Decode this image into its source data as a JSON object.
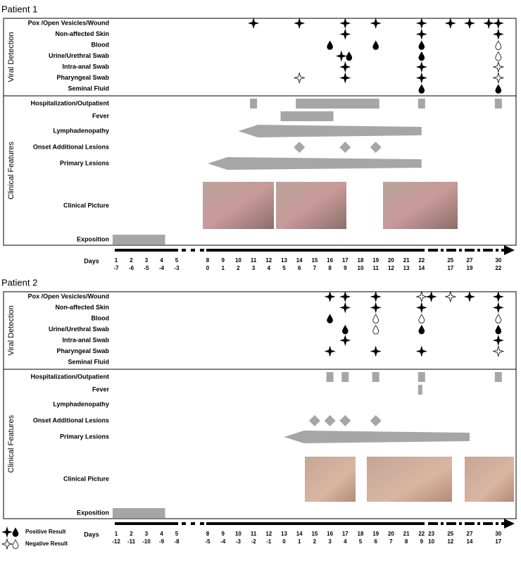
{
  "patients": [
    {
      "title": "Patient 1",
      "viral_detection": {
        "label": "Viral Detection",
        "rows": [
          {
            "label": "Pox /Open Vesicles/Wound",
            "events": [
              {
                "day": 11,
                "symbol": "star",
                "positive": true
              },
              {
                "day": 14,
                "symbol": "star",
                "positive": true
              },
              {
                "day": 17,
                "symbol": "star",
                "positive": true
              },
              {
                "day": 19,
                "symbol": "star",
                "positive": true
              },
              {
                "day": 22,
                "symbol": "star",
                "positive": true
              },
              {
                "day": 25,
                "symbol": "star",
                "positive": true
              },
              {
                "day": 27,
                "symbol": "star",
                "positive": true
              },
              {
                "day": 29,
                "symbol": "star",
                "positive": true
              },
              {
                "day": 30,
                "symbol": "star",
                "positive": true
              }
            ]
          },
          {
            "label": "Non-affected Skin",
            "events": [
              {
                "day": 17,
                "symbol": "star",
                "positive": true
              },
              {
                "day": 22,
                "symbol": "star",
                "positive": true
              },
              {
                "day": 30,
                "symbol": "star",
                "positive": true
              }
            ]
          },
          {
            "label": "Blood",
            "events": [
              {
                "day": 16,
                "symbol": "drop",
                "positive": true
              },
              {
                "day": 19,
                "symbol": "drop",
                "positive": true
              },
              {
                "day": 22,
                "symbol": "drop",
                "positive": true
              },
              {
                "day": 30,
                "symbol": "drop",
                "positive": false
              }
            ]
          },
          {
            "label": "Urine/Urethral Swab",
            "events": [
              {
                "day": 17,
                "symbol": "star",
                "positive": true
              },
              {
                "day": 17,
                "symbol": "drop",
                "positive": true
              },
              {
                "day": 22,
                "symbol": "drop",
                "positive": true
              },
              {
                "day": 30,
                "symbol": "drop",
                "positive": false
              }
            ]
          },
          {
            "label": "Intra-anal Swab",
            "events": [
              {
                "day": 17,
                "symbol": "star",
                "positive": true
              },
              {
                "day": 22,
                "symbol": "star",
                "positive": true
              },
              {
                "day": 30,
                "symbol": "star",
                "positive": false
              }
            ]
          },
          {
            "label": "Pharyngeal Swab",
            "events": [
              {
                "day": 14,
                "symbol": "star",
                "positive": false
              },
              {
                "day": 17,
                "symbol": "star",
                "positive": true
              },
              {
                "day": 22,
                "symbol": "star",
                "positive": true
              },
              {
                "day": 30,
                "symbol": "star",
                "positive": false
              }
            ]
          },
          {
            "label": "Seminal Fluid",
            "events": [
              {
                "day": 22,
                "symbol": "drop",
                "positive": true
              },
              {
                "day": 30,
                "symbol": "drop",
                "positive": true
              }
            ]
          }
        ]
      },
      "clinical_features": {
        "label": "Clinical Features",
        "rows": [
          {
            "label": "Hospitalization/Outpatient",
            "kind": "bars",
            "ranges": [
              [
                11,
                11
              ],
              [
                14,
                19
              ],
              [
                22,
                22
              ],
              [
                30,
                30
              ]
            ]
          },
          {
            "label": "Fever",
            "kind": "bars",
            "ranges": [
              [
                13,
                16
              ]
            ]
          },
          {
            "label": "Lymphadenopathy",
            "kind": "arrow",
            "range": [
              10,
              22
            ]
          },
          {
            "label": "Onset Additional Lesions",
            "kind": "diamonds",
            "days": [
              14,
              17,
              19
            ]
          },
          {
            "label": "Primary Lesions",
            "kind": "arrow",
            "range": [
              8,
              22
            ]
          },
          {
            "label": "Clinical Picture",
            "kind": "photos"
          },
          {
            "label": "Exposition",
            "kind": "bars",
            "ranges": [
              [
                1,
                4
              ]
            ]
          }
        ]
      },
      "axis": {
        "label": "Days",
        "ticks": [
          1,
          2,
          3,
          4,
          5,
          8,
          9,
          10,
          11,
          12,
          13,
          14,
          15,
          16,
          17,
          18,
          19,
          20,
          21,
          22,
          25,
          27,
          30
        ],
        "relative": [
          -7,
          -6,
          -5,
          -4,
          -3,
          0,
          1,
          2,
          3,
          4,
          5,
          6,
          7,
          8,
          9,
          10,
          11,
          12,
          13,
          14,
          17,
          19,
          22
        ]
      }
    },
    {
      "title": "Patient 2",
      "viral_detection": {
        "label": "Viral Detection",
        "rows": [
          {
            "label": "Pox /Open Vesicles/Wound",
            "events": [
              {
                "day": 16,
                "symbol": "star",
                "positive": true
              },
              {
                "day": 17,
                "symbol": "star",
                "positive": true
              },
              {
                "day": 19,
                "symbol": "star",
                "positive": true
              },
              {
                "day": 22,
                "symbol": "star",
                "positive": false
              },
              {
                "day": 23,
                "symbol": "star",
                "positive": true
              },
              {
                "day": 25,
                "symbol": "star",
                "positive": false
              },
              {
                "day": 27,
                "symbol": "star",
                "positive": true
              },
              {
                "day": 30,
                "symbol": "star",
                "positive": true
              }
            ]
          },
          {
            "label": "Non-affected Skin",
            "events": [
              {
                "day": 17,
                "symbol": "star",
                "positive": true
              },
              {
                "day": 19,
                "symbol": "star",
                "positive": true
              },
              {
                "day": 22,
                "symbol": "star",
                "positive": true
              },
              {
                "day": 30,
                "symbol": "star",
                "positive": true
              }
            ]
          },
          {
            "label": "Blood",
            "events": [
              {
                "day": 16,
                "symbol": "drop",
                "positive": true
              },
              {
                "day": 19,
                "symbol": "drop",
                "positive": false
              },
              {
                "day": 22,
                "symbol": "drop",
                "positive": false
              },
              {
                "day": 30,
                "symbol": "drop",
                "positive": false
              }
            ]
          },
          {
            "label": "Urine/Urethral Swab",
            "events": [
              {
                "day": 17,
                "symbol": "drop",
                "positive": true
              },
              {
                "day": 19,
                "symbol": "drop",
                "positive": false
              },
              {
                "day": 22,
                "symbol": "drop",
                "positive": true
              },
              {
                "day": 30,
                "symbol": "drop",
                "positive": true
              }
            ]
          },
          {
            "label": "Intra-anal Swab",
            "events": [
              {
                "day": 17,
                "symbol": "star",
                "positive": true
              },
              {
                "day": 30,
                "symbol": "star",
                "positive": true
              }
            ]
          },
          {
            "label": "Pharyngeal Swab",
            "events": [
              {
                "day": 16,
                "symbol": "star",
                "positive": true
              },
              {
                "day": 19,
                "symbol": "star",
                "positive": true
              },
              {
                "day": 22,
                "symbol": "star",
                "positive": true
              },
              {
                "day": 30,
                "symbol": "star",
                "positive": false
              }
            ]
          },
          {
            "label": "Seminal Fluid",
            "events": []
          }
        ]
      },
      "clinical_features": {
        "label": "Clinical Features",
        "rows": [
          {
            "label": "Hospitalization/Outpatient",
            "kind": "bars",
            "ranges": [
              [
                16,
                16
              ],
              [
                17,
                17
              ],
              [
                19,
                19
              ],
              [
                22,
                22
              ],
              [
                30,
                30
              ]
            ]
          },
          {
            "label": "Fever",
            "kind": "bars",
            "ranges": [
              [
                22,
                22
              ]
            ]
          },
          {
            "label": "Lymphadenopathy",
            "kind": "none"
          },
          {
            "label": "Onset Additional Lesions",
            "kind": "diamonds",
            "days": [
              15,
              16,
              17,
              19
            ]
          },
          {
            "label": "Primary Lesions",
            "kind": "arrow",
            "range": [
              13,
              27
            ]
          },
          {
            "label": "Clinical Picture",
            "kind": "photos"
          },
          {
            "label": "Exposition",
            "kind": "bars",
            "ranges": [
              [
                1,
                4
              ]
            ]
          }
        ]
      },
      "axis": {
        "label": "Days",
        "ticks": [
          1,
          2,
          3,
          4,
          5,
          8,
          9,
          10,
          11,
          12,
          13,
          14,
          15,
          16,
          17,
          18,
          19,
          20,
          21,
          22,
          23,
          25,
          27,
          30
        ],
        "relative": [
          -12,
          -11,
          -10,
          -9,
          -8,
          -5,
          -4,
          -3,
          -2,
          -1,
          0,
          1,
          2,
          3,
          4,
          5,
          6,
          7,
          8,
          9,
          10,
          12,
          14,
          17
        ]
      }
    }
  ],
  "legend": [
    {
      "label": "Positive Result"
    },
    {
      "label": "Negative Result"
    }
  ]
}
